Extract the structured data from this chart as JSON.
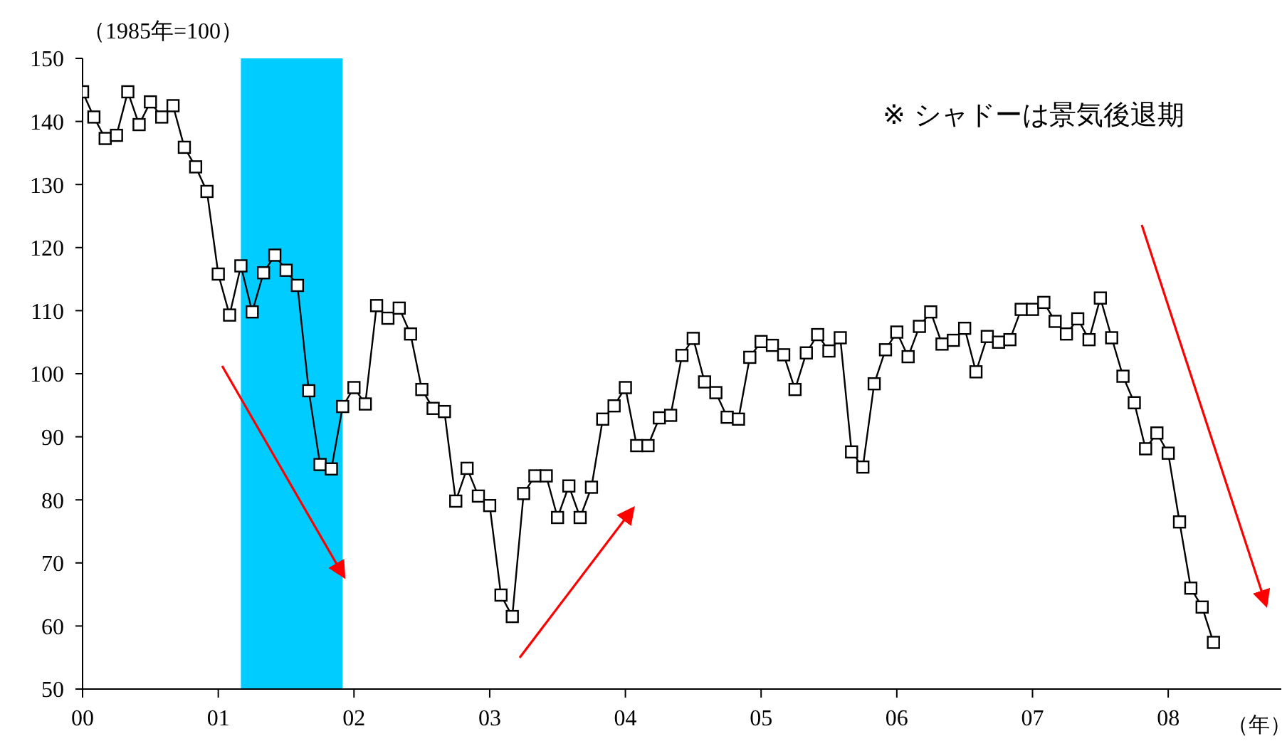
{
  "chart_data": {
    "type": "line",
    "ylabel": "（1985年=100）",
    "xlabel": "（年）",
    "annotations": [
      "※ シャドーは景気後退期"
    ],
    "x": [
      "2000-01",
      "2000-02",
      "2000-03",
      "2000-04",
      "2000-05",
      "2000-06",
      "2000-07",
      "2000-08",
      "2000-09",
      "2000-10",
      "2000-11",
      "2000-12",
      "2001-01",
      "2001-02",
      "2001-03",
      "2001-04",
      "2001-05",
      "2001-06",
      "2001-07",
      "2001-08",
      "2001-09",
      "2001-10",
      "2001-11",
      "2001-12",
      "2002-01",
      "2002-02",
      "2002-03",
      "2002-04",
      "2002-05",
      "2002-06",
      "2002-07",
      "2002-08",
      "2002-09",
      "2002-10",
      "2002-11",
      "2002-12",
      "2003-01",
      "2003-02",
      "2003-03",
      "2003-04",
      "2003-05",
      "2003-06",
      "2003-07",
      "2003-08",
      "2003-09",
      "2003-10",
      "2003-11",
      "2003-12",
      "2004-01",
      "2004-02",
      "2004-03",
      "2004-04",
      "2004-05",
      "2004-06",
      "2004-07",
      "2004-08",
      "2004-09",
      "2004-10",
      "2004-11",
      "2004-12",
      "2005-01",
      "2005-02",
      "2005-03",
      "2005-04",
      "2005-05",
      "2005-06",
      "2005-07",
      "2005-08",
      "2005-09",
      "2005-10",
      "2005-11",
      "2005-12",
      "2006-01",
      "2006-02",
      "2006-03",
      "2006-04",
      "2006-05",
      "2006-06",
      "2006-07",
      "2006-08",
      "2006-09",
      "2006-10",
      "2006-11",
      "2006-12",
      "2007-01",
      "2007-02",
      "2007-03",
      "2007-04",
      "2007-05",
      "2007-06",
      "2007-07",
      "2007-08",
      "2007-09",
      "2007-10",
      "2007-11",
      "2007-12",
      "2008-01",
      "2008-02",
      "2008-03",
      "2008-04",
      "2008-05"
    ],
    "series": [
      {
        "color": "#000000",
        "values": [
          144.7,
          140.7,
          137.3,
          137.8,
          144.7,
          139.5,
          143.1,
          140.7,
          142.5,
          135.9,
          132.8,
          128.9,
          115.8,
          109.3,
          117.1,
          109.8,
          116.0,
          118.8,
          116.4,
          114.0,
          97.3,
          85.6,
          84.9,
          94.8,
          97.8,
          95.2,
          110.8,
          108.8,
          110.4,
          106.3,
          97.5,
          94.5,
          94.0,
          79.8,
          85.0,
          80.6,
          79.1,
          64.9,
          61.5,
          81.0,
          83.8,
          83.8,
          77.2,
          82.2,
          77.2,
          82.0,
          92.8,
          94.9,
          97.8,
          88.6,
          88.6,
          93.0,
          93.4,
          102.9,
          105.6,
          98.7,
          97.0,
          93.1,
          92.8,
          102.6,
          105.1,
          104.5,
          103.0,
          97.5,
          103.3,
          106.2,
          103.6,
          105.7,
          87.6,
          85.2,
          98.4,
          103.8,
          106.6,
          102.7,
          107.5,
          109.8,
          104.7,
          105.3,
          107.2,
          100.3,
          105.9,
          105.0,
          105.4,
          110.2,
          110.2,
          111.3,
          108.3,
          106.3,
          108.7,
          105.4,
          112.0,
          105.7,
          99.6,
          95.4,
          88.1,
          90.6,
          87.4,
          76.5,
          66.0,
          63.0,
          57.4
        ]
      }
    ],
    "marker": "square",
    "line_style": "solid",
    "xlim": [
      "2000-01",
      "2008-11"
    ],
    "xticks": [
      {
        "value": "2000-01",
        "label": "00"
      },
      {
        "value": "2001-01",
        "label": "01"
      },
      {
        "value": "2002-01",
        "label": "02"
      },
      {
        "value": "2003-01",
        "label": "03"
      },
      {
        "value": "2004-01",
        "label": "04"
      },
      {
        "value": "2005-01",
        "label": "05"
      },
      {
        "value": "2006-01",
        "label": "06"
      },
      {
        "value": "2007-01",
        "label": "07"
      },
      {
        "value": "2008-01",
        "label": "08"
      }
    ],
    "ylim": [
      50,
      150
    ],
    "yticks": [
      50,
      60,
      70,
      80,
      90,
      100,
      110,
      120,
      130,
      140,
      150
    ],
    "bands": [
      {
        "axis": "x",
        "from": "2001-03",
        "to": "2001-12",
        "label": null,
        "color": "#00ccff"
      }
    ],
    "grid": false,
    "legend": false
  }
}
